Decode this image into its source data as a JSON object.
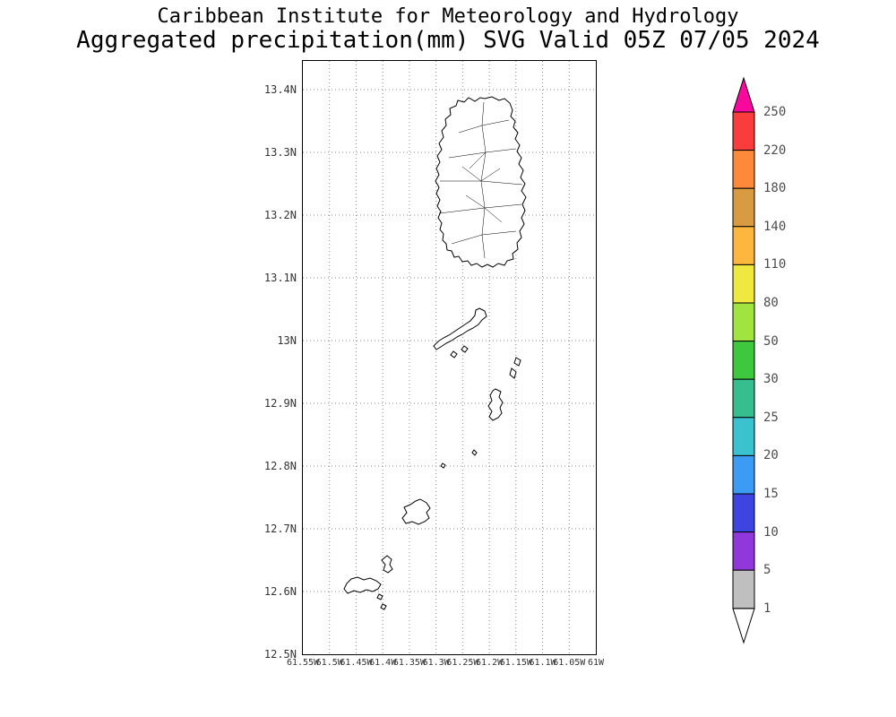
{
  "header": {
    "line1": "Caribbean Institute for Meteorology and Hydrology",
    "line2": "Aggregated precipitation(mm) SVG Valid 05Z 07/05 2024"
  },
  "map": {
    "lat_labels": [
      "13.4N",
      "13.3N",
      "13.2N",
      "13.1N",
      "13N",
      "12.9N",
      "12.8N",
      "12.7N",
      "12.6N",
      "12.5N"
    ],
    "lon_labels": [
      "61.55W",
      "61.5W",
      "61.45W",
      "61.4W",
      "61.35W",
      "61.3W",
      "61.25W",
      "61.2W",
      "61.15W",
      "61.1W",
      "61.05W",
      "61W"
    ],
    "islands": [
      "st-vincent",
      "bequia",
      "petit-nevis",
      "isle-a-quatre",
      "battowia",
      "balliceaux",
      "mustique",
      "savan",
      "petit-mustique",
      "canouan",
      "mayreau",
      "union-island",
      "palm-island",
      "petit-st-vincent"
    ]
  },
  "colorbar": {
    "levels": [
      "250",
      "220",
      "180",
      "140",
      "110",
      "80",
      "50",
      "30",
      "25",
      "20",
      "15",
      "10",
      "5",
      "1"
    ],
    "colors_top_to_bottom": [
      "#F8089C",
      "#FA3C3C",
      "#FD8A3A",
      "#D89B42",
      "#FDB73E",
      "#EFE93F",
      "#A2E43F",
      "#3DC83D",
      "#37BE8F",
      "#3AC3CF",
      "#3C9BF2",
      "#3D44E0",
      "#9038DC",
      "#BFBFBF",
      "#FFFFFF"
    ]
  },
  "chart_data": {
    "type": "heatmap",
    "title": "Aggregated precipitation(mm) SVG Valid 05Z 07/05 2024",
    "subtitle": "Caribbean Institute for Meteorology and Hydrology",
    "x_tick_labels": [
      "61.55W",
      "61.5W",
      "61.45W",
      "61.4W",
      "61.35W",
      "61.3W",
      "61.25W",
      "61.2W",
      "61.15W",
      "61.1W",
      "61.05W",
      "61W"
    ],
    "y_tick_labels": [
      "13.4N",
      "13.3N",
      "13.2N",
      "13.1N",
      "13N",
      "12.9N",
      "12.8N",
      "12.7N",
      "12.6N",
      "12.5N"
    ],
    "legend_levels_mm": [
      1,
      5,
      10,
      15,
      20,
      25,
      30,
      50,
      80,
      110,
      140,
      180,
      220,
      250
    ],
    "legend_position": "right",
    "grid": "dotted",
    "values": "no shaded precipitation visible; island areas drawn unfilled (white)"
  }
}
